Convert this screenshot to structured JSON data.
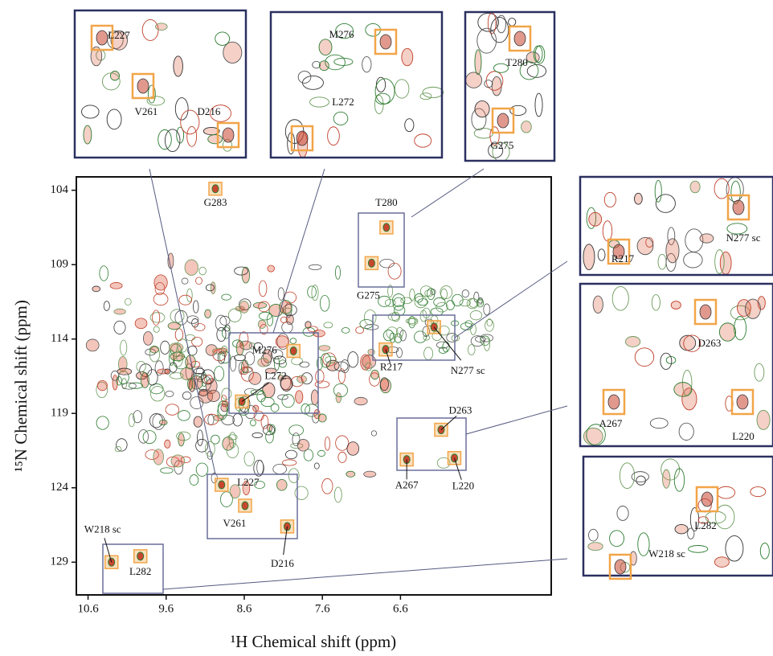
{
  "chart_data": {
    "type": "scatter",
    "xlabel": "¹H Chemical shift (ppm)",
    "ylabel": "¹⁵N Chemical shift (ppm)",
    "labels": [
      "G283",
      "T280",
      "G275",
      "M276",
      "L272",
      "R217",
      "N277 sc",
      "D263",
      "A267",
      "L220",
      "L227",
      "V261",
      "D216",
      "W218 sc",
      "L282"
    ],
    "x": [
      8.97,
      6.78,
      6.97,
      7.97,
      8.63,
      6.79,
      6.17,
      6.08,
      6.52,
      5.91,
      8.89,
      8.59,
      8.05,
      10.3,
      9.93
    ],
    "values": [
      103.9,
      106.5,
      108.9,
      114.8,
      118.2,
      114.7,
      113.2,
      120.1,
      122.1,
      122.0,
      123.8,
      125.2,
      126.6,
      129.0,
      128.6
    ],
    "xlim": [
      10.75,
      4.67
    ],
    "ylim": [
      103.1,
      131.2
    ],
    "xticks": [
      10.6,
      9.6,
      8.6,
      7.6,
      6.6
    ],
    "yticks": [
      104,
      109,
      114,
      119,
      124,
      129
    ]
  }
}
